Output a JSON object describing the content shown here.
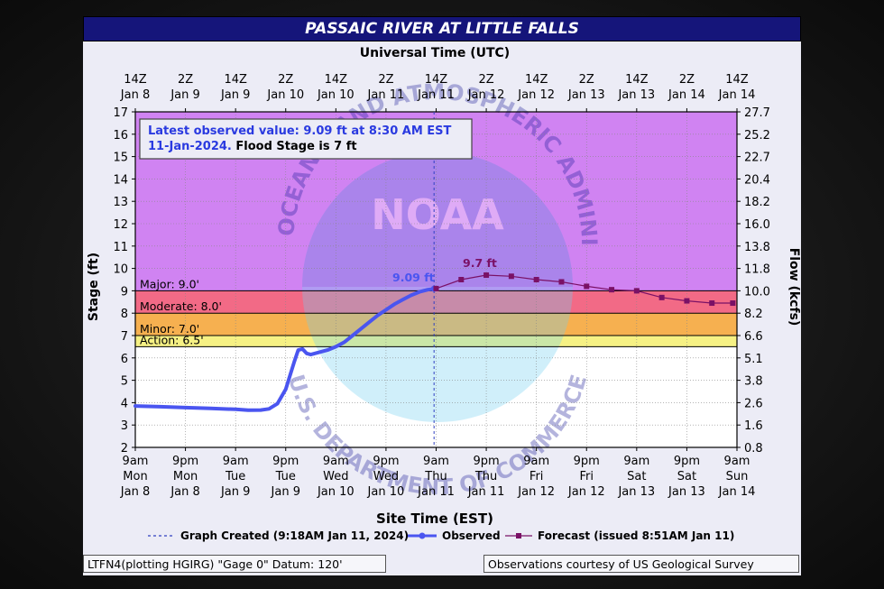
{
  "colors": {
    "title_bg": "#15157a",
    "major": "#f26a86",
    "moderate": "#f6b050",
    "minor": "#f6f184",
    "above_major": "#d083f2",
    "observed": "#4a55f0",
    "forecast": "#7a1166",
    "annotation_text": "#2a3ae0"
  },
  "footer": {
    "left": "LTFN4(plotting HGIRG) \"Gage 0\" Datum: 120'",
    "right": "Observations courtesy of US Geological Survey"
  },
  "chart_data": {
    "type": "line",
    "title": "PASSAIC RIVER AT LITTLE FALLS",
    "top_axis_title": "Universal Time (UTC)",
    "xlabel": "Site Time (EST)",
    "ylabel": "Stage (ft)",
    "ylabel_right": "Flow (kcfs)",
    "ylim": [
      2,
      17
    ],
    "yticks": [
      2,
      3,
      4,
      5,
      6,
      7,
      8,
      9,
      10,
      11,
      12,
      13,
      14,
      15,
      16,
      17
    ],
    "right_ticks": [
      "0.8",
      "1.6",
      "2.6",
      "3.8",
      "5.1",
      "6.6",
      "8.2",
      "10.0",
      "11.8",
      "13.8",
      "16.0",
      "18.2",
      "20.4",
      "22.7",
      "25.2",
      "27.7"
    ],
    "xlim_hours": [
      0,
      144
    ],
    "bottom_ticks": [
      [
        "9am",
        "Mon",
        "Jan 8"
      ],
      [
        "9pm",
        "Mon",
        "Jan 8"
      ],
      [
        "9am",
        "Tue",
        "Jan 9"
      ],
      [
        "9pm",
        "Tue",
        "Jan 9"
      ],
      [
        "9am",
        "Wed",
        "Jan 10"
      ],
      [
        "9pm",
        "Wed",
        "Jan 10"
      ],
      [
        "9am",
        "Thu",
        "Jan 11"
      ],
      [
        "9pm",
        "Thu",
        "Jan 11"
      ],
      [
        "9am",
        "Fri",
        "Jan 12"
      ],
      [
        "9pm",
        "Fri",
        "Jan 12"
      ],
      [
        "9am",
        "Sat",
        "Jan 13"
      ],
      [
        "9pm",
        "Sat",
        "Jan 13"
      ],
      [
        "9am",
        "Sun",
        "Jan 14"
      ]
    ],
    "top_ticks": [
      [
        "14Z",
        "Jan 8"
      ],
      [
        "2Z",
        "Jan 9"
      ],
      [
        "14Z",
        "Jan 9"
      ],
      [
        "2Z",
        "Jan 10"
      ],
      [
        "14Z",
        "Jan 10"
      ],
      [
        "2Z",
        "Jan 11"
      ],
      [
        "14Z",
        "Jan 11"
      ],
      [
        "2Z",
        "Jan 12"
      ],
      [
        "14Z",
        "Jan 12"
      ],
      [
        "2Z",
        "Jan 13"
      ],
      [
        "14Z",
        "Jan 13"
      ],
      [
        "2Z",
        "Jan 14"
      ],
      [
        "14Z",
        "Jan 14"
      ]
    ],
    "flood_categories": [
      {
        "label": "Major: 9.0'",
        "from": 9.0,
        "to": 17,
        "color": "#d083f2"
      },
      {
        "label": "Moderate: 8.0'",
        "from": 8.0,
        "to": 9.0,
        "color": "#f26a86"
      },
      {
        "label": "Minor: 7.0'",
        "from": 7.0,
        "to": 8.0,
        "color": "#f6b050"
      },
      {
        "label": "Action: 6.5'",
        "from": 6.5,
        "to": 7.0,
        "color": "#f6f184"
      }
    ],
    "info_box": {
      "line1": "Latest observed value: 9.09 ft at 8:30 AM EST",
      "line2_blue": "11-Jan-2024.",
      "line2_black": " Flood Stage is 7 ft"
    },
    "graph_created_hour": 71.5,
    "observed_label": "9.09 ft",
    "forecast_label": "9.7 ft",
    "series": [
      {
        "name": "Observed",
        "x_hours": [
          0,
          6,
          12,
          18,
          24,
          27,
          30,
          32,
          34,
          36,
          37,
          38,
          39,
          40,
          41,
          42,
          44,
          46,
          48,
          50,
          52,
          54,
          56,
          58,
          60,
          62,
          64,
          66,
          68,
          70,
          71.5
        ],
        "y": [
          3.85,
          3.82,
          3.78,
          3.74,
          3.7,
          3.66,
          3.67,
          3.72,
          3.95,
          4.6,
          5.2,
          5.8,
          6.35,
          6.4,
          6.2,
          6.15,
          6.25,
          6.35,
          6.5,
          6.7,
          7.0,
          7.3,
          7.6,
          7.9,
          8.15,
          8.4,
          8.6,
          8.8,
          8.95,
          9.05,
          9.09
        ]
      },
      {
        "name": "Forecast (issued 8:51AM Jan 11)",
        "x_hours": [
          72,
          78,
          84,
          90,
          96,
          102,
          108,
          114,
          120,
          126,
          132,
          138,
          143
        ],
        "y": [
          9.1,
          9.5,
          9.7,
          9.65,
          9.5,
          9.4,
          9.2,
          9.05,
          9.0,
          8.7,
          8.55,
          8.45,
          8.45
        ],
        "marker_x_hours": [
          72,
          78,
          84,
          90,
          96,
          102,
          108,
          114,
          120,
          126,
          132,
          138,
          143
        ]
      }
    ],
    "legend": {
      "graph_created": "Graph Created (9:18AM Jan 11, 2024)",
      "observed": "Observed",
      "forecast": "Forecast (issued 8:51AM Jan 11)",
      "placement": "bottom"
    },
    "watermark": {
      "top_text": "NATIONAL OCEANIC AND ATMOSPHERIC ADMINISTRATION",
      "center_text": "NOAA",
      "bottom_text": "U.S. DEPARTMENT OF COMMERCE"
    }
  }
}
